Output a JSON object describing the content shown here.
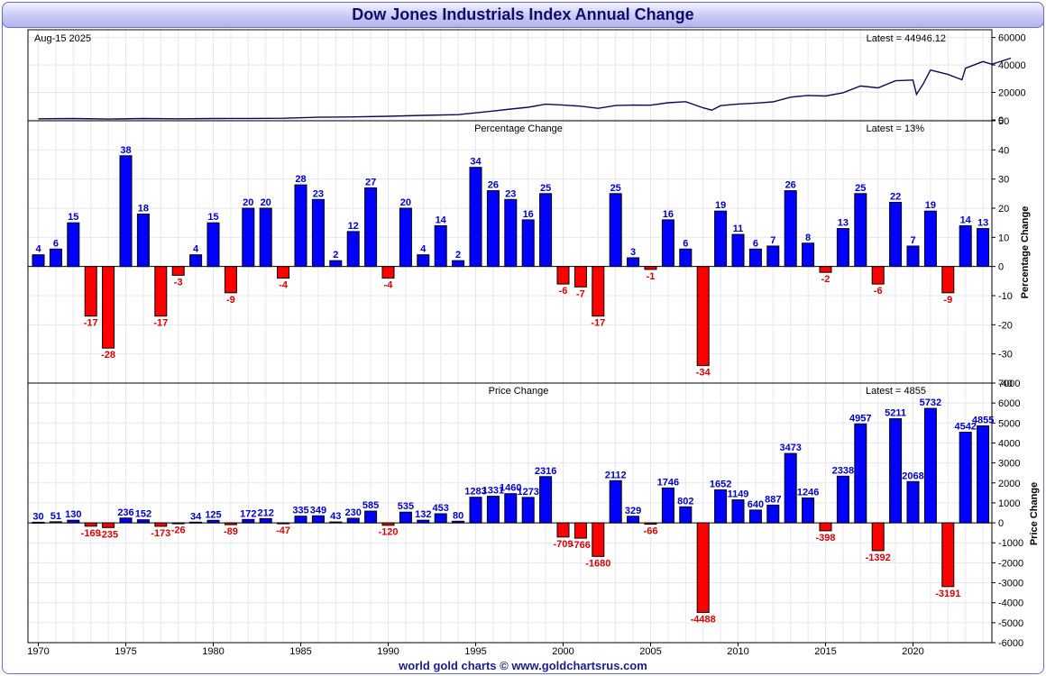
{
  "title": "Dow Jones Industrials Index Annual Change",
  "footer": "world gold charts © www.goldchartsrus.com",
  "colors": {
    "positive": "#0000ff",
    "negative": "#ff0000",
    "positive_label": "#0000cc",
    "negative_label": "#dd0000",
    "line": "#0b0b5a",
    "grid": "#e6e6ee"
  },
  "chart_data": [
    {
      "type": "line",
      "panel": "price",
      "date_label": "Aug-15  2025",
      "latest_label": "Latest = 44946.12",
      "x": [
        1970,
        1972,
        1974,
        1976,
        1978,
        1980,
        1982,
        1984,
        1986,
        1988,
        1990,
        1992,
        1994,
        1995,
        1996,
        1997,
        1998,
        1999,
        2000,
        2001,
        2002,
        2003,
        2004,
        2005,
        2006,
        2007,
        2008,
        2008.5,
        2009,
        2010,
        2011,
        2012,
        2013,
        2014,
        2015,
        2016,
        2017,
        2018,
        2019,
        2020,
        2020.2,
        2020.6,
        2021,
        2022,
        2022.8,
        2023,
        2024,
        2024.5,
        2025.6
      ],
      "y": [
        800,
        1000,
        620,
        1000,
        810,
        960,
        1050,
        1210,
        1900,
        2150,
        2630,
        3300,
        3830,
        5100,
        6450,
        7900,
        9180,
        11400,
        10800,
        10000,
        8400,
        10450,
        10780,
        10720,
        12460,
        13260,
        8800,
        7060,
        10400,
        11580,
        12200,
        13100,
        16570,
        17820,
        17420,
        19760,
        24700,
        23300,
        28500,
        29000,
        18600,
        26500,
        36300,
        33100,
        29200,
        37600,
        42500,
        40500,
        44946
      ],
      "ylim": [
        0,
        65000
      ],
      "yticks": [
        0,
        20000,
        40000,
        60000
      ]
    },
    {
      "type": "bar",
      "panel": "percentage",
      "title": "Percentage Change",
      "latest_label": "Latest = 13%",
      "ylabel": "Percentage Change",
      "ylim": [
        -40,
        50
      ],
      "yticks": [
        -40,
        -30,
        -20,
        -10,
        0,
        10,
        20,
        30,
        40,
        50
      ],
      "years": [
        1970,
        1971,
        1972,
        1973,
        1974,
        1975,
        1976,
        1977,
        1978,
        1979,
        1980,
        1981,
        1982,
        1983,
        1984,
        1985,
        1986,
        1987,
        1988,
        1989,
        1990,
        1991,
        1992,
        1993,
        1994,
        1995,
        1996,
        1997,
        1998,
        1999,
        2000,
        2001,
        2002,
        2003,
        2004,
        2005,
        2006,
        2007,
        2008,
        2009,
        2010,
        2011,
        2012,
        2013,
        2014,
        2015,
        2016,
        2017,
        2018,
        2019,
        2020,
        2021,
        2022,
        2023,
        2024
      ],
      "values": [
        4,
        6,
        15,
        -17,
        -28,
        38,
        18,
        -17,
        -3,
        4,
        15,
        -9,
        20,
        20,
        -4,
        28,
        23,
        2,
        12,
        27,
        -4,
        20,
        4,
        14,
        2,
        34,
        26,
        23,
        16,
        25,
        -6,
        -7,
        -17,
        25,
        3,
        -1,
        16,
        6,
        -34,
        19,
        11,
        6,
        7,
        26,
        8,
        -2,
        13,
        25,
        -6,
        22,
        7,
        19,
        -9,
        14,
        13
      ],
      "labels": [
        "4",
        "6",
        "15",
        "-17",
        "-28",
        "38",
        "18",
        "-17",
        "-3",
        "4",
        "15",
        "-9",
        "20",
        "20",
        "-4",
        "28",
        "23",
        "2",
        "12",
        "27",
        "-4",
        "20",
        "4",
        "14",
        "2",
        "34",
        "26",
        "23",
        "16",
        "25",
        "-6",
        "-7",
        "-17",
        "25",
        "3",
        "-1",
        "16",
        "6",
        "-34",
        "19",
        "11",
        "6",
        "7",
        "26",
        "8",
        "-2",
        "13",
        "25",
        "-6",
        "22",
        "7",
        "19",
        "-9",
        "14",
        "13"
      ]
    },
    {
      "type": "bar",
      "panel": "price_change",
      "title": "Price Change",
      "latest_label": "Latest = 4855",
      "ylabel": "Price Change",
      "ylim": [
        -6000,
        7000
      ],
      "yticks": [
        -6000,
        -5000,
        -4000,
        -3000,
        -2000,
        -1000,
        0,
        1000,
        2000,
        3000,
        4000,
        5000,
        6000,
        7000
      ],
      "xticks": [
        1970,
        1975,
        1980,
        1985,
        1990,
        1995,
        2000,
        2005,
        2010,
        2015,
        2020
      ],
      "years": [
        1970,
        1971,
        1972,
        1973,
        1974,
        1975,
        1976,
        1977,
        1978,
        1979,
        1980,
        1981,
        1982,
        1983,
        1984,
        1985,
        1986,
        1987,
        1988,
        1989,
        1990,
        1991,
        1992,
        1993,
        1994,
        1995,
        1996,
        1997,
        1998,
        1999,
        2000,
        2001,
        2002,
        2003,
        2004,
        2005,
        2006,
        2007,
        2008,
        2009,
        2010,
        2011,
        2012,
        2013,
        2014,
        2015,
        2016,
        2017,
        2018,
        2019,
        2020,
        2021,
        2022,
        2023,
        2024
      ],
      "values": [
        30,
        51,
        130,
        -169,
        -235,
        236,
        152,
        -173,
        -26,
        34,
        125,
        -89,
        172,
        212,
        -47,
        335,
        349,
        43,
        230,
        585,
        -120,
        535,
        132,
        453,
        80,
        1283,
        1331,
        1460,
        1273,
        2316,
        -709,
        -766,
        -1680,
        2112,
        329,
        -66,
        1746,
        802,
        -4488,
        1652,
        1149,
        640,
        887,
        3473,
        1246,
        -398,
        2338,
        4957,
        -1392,
        5211,
        2068,
        5732,
        -3191,
        4542,
        4855
      ],
      "labels": [
        "30",
        "51",
        "130",
        "-169",
        "-235",
        "236",
        "152",
        "-173",
        "-26",
        "34",
        "125",
        "-89",
        "172",
        "212",
        "-47",
        "335",
        "349",
        "43",
        "230",
        "585",
        "-120",
        "535",
        "132",
        "453",
        "80",
        "1283",
        "1331",
        "1460",
        "1273",
        "2316",
        "-709",
        "-766",
        "-1680",
        "2112",
        "329",
        "-66",
        "1746",
        "802",
        "-4488",
        "1652",
        "1149",
        "640",
        "887",
        "3473",
        "1246",
        "-398",
        "2338",
        "4957",
        "-1392",
        "5211",
        "2068",
        "5732",
        "-3191",
        "4542",
        "4855"
      ]
    }
  ]
}
